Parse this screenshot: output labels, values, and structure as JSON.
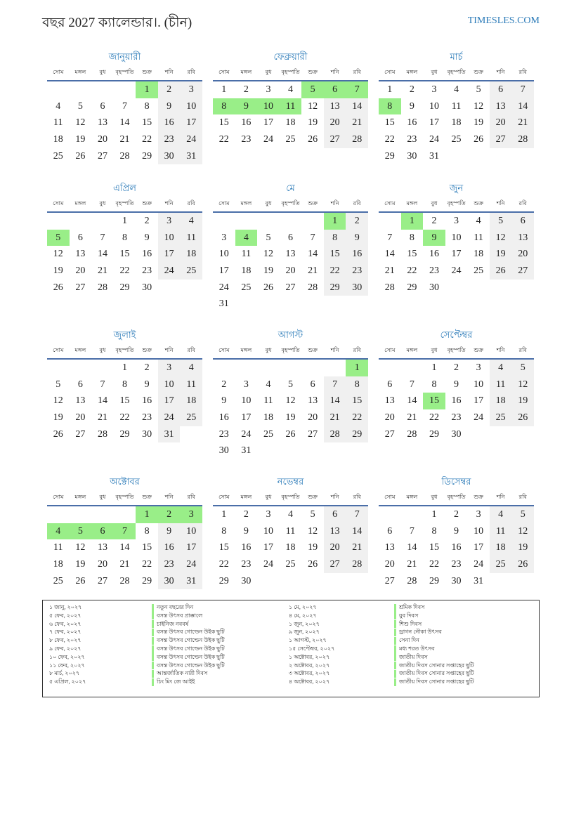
{
  "header": {
    "title": "বছর 2027 ক্যালেন্ডার।. (চীন)",
    "site": "TIMESLES.COM"
  },
  "colors": {
    "accent": "#2a7ab8",
    "holiday": "#99ee88",
    "weekend": "#f0f0f0",
    "rule": "#4a6ea8"
  },
  "weekdays": [
    "সোম",
    "মঙ্গল",
    "বুধ",
    "বৃহস্পতি",
    "শুক্র",
    "শনি",
    "রবি"
  ],
  "months": [
    {
      "name": "জানুয়ারী",
      "start_weekday": 4,
      "days": 31,
      "holidays": [
        1
      ]
    },
    {
      "name": "ফেব্রুয়ারী",
      "start_weekday": 0,
      "days": 28,
      "holidays": [
        5,
        6,
        7,
        8,
        9,
        10,
        11
      ]
    },
    {
      "name": "মার্চ",
      "start_weekday": 0,
      "days": 31,
      "holidays": [
        8
      ]
    },
    {
      "name": "এপ্রিল",
      "start_weekday": 3,
      "days": 30,
      "holidays": [
        5
      ]
    },
    {
      "name": "মে",
      "start_weekday": 5,
      "days": 31,
      "holidays": [
        1,
        4
      ]
    },
    {
      "name": "জুন",
      "start_weekday": 1,
      "days": 30,
      "holidays": [
        1,
        9
      ]
    },
    {
      "name": "জুলাই",
      "start_weekday": 3,
      "days": 31,
      "holidays": []
    },
    {
      "name": "আগস্ট",
      "start_weekday": 6,
      "days": 31,
      "holidays": [
        1
      ]
    },
    {
      "name": "সেপ্টেম্বর",
      "start_weekday": 2,
      "days": 30,
      "holidays": [
        15
      ]
    },
    {
      "name": "অক্টোবর",
      "start_weekday": 4,
      "days": 31,
      "holidays": [
        1,
        2,
        3,
        4,
        5,
        6,
        7
      ]
    },
    {
      "name": "নভেম্বর",
      "start_weekday": 0,
      "days": 30,
      "holidays": []
    },
    {
      "name": "ডিসেম্বর",
      "start_weekday": 2,
      "days": 31,
      "holidays": []
    }
  ],
  "holiday_list": [
    {
      "date": "১ জানু, ২০২৭",
      "name": "নতুন বছরের দিন"
    },
    {
      "date": "৫ ফেব, ২০২৭",
      "name": "বসন্ত উৎসব প্রাক্কালে"
    },
    {
      "date": "৬ ফেব, ২০২৭",
      "name": "চাইনিজ নববর্ষ"
    },
    {
      "date": "৭ ফেব, ২০২৭",
      "name": "বসন্ত উৎসব গোল্ডেন উইক ছুটি"
    },
    {
      "date": "৮ ফেব, ২০২৭",
      "name": "বসন্ত উৎসব গোল্ডেন উইক ছুটি"
    },
    {
      "date": "৯ ফেব, ২০২৭",
      "name": "বসন্ত উৎসব গোল্ডেন উইক ছুটি"
    },
    {
      "date": "১০ ফেব, ২০২৭",
      "name": "বসন্ত উৎসব গোল্ডেন উইক ছুটি"
    },
    {
      "date": "১১ ফেব, ২০২৭",
      "name": "বসন্ত উৎসব গোল্ডেন উইক ছুটি"
    },
    {
      "date": "৮ মার্চ, ২০২৭",
      "name": "আন্তর্জাতিক নারী দিবস"
    },
    {
      "date": "৫ এপ্রিল, ২০২৭",
      "name": "চিং মিং জে আইই"
    },
    {
      "date": "১ মে, ২০২৭",
      "name": "শ্রমিক দিবস"
    },
    {
      "date": "৪ মে, ২০২৭",
      "name": "যুব দিবস"
    },
    {
      "date": "১ জুন, ২০২৭",
      "name": "শিশু দিবস"
    },
    {
      "date": "৯ জুন, ২০২৭",
      "name": "ড্রাগন নৌকা উৎসব"
    },
    {
      "date": "১ আগস্ট, ২০২৭",
      "name": "সেনা দিন"
    },
    {
      "date": "১৫ সেপ্টেম্বর, ২০২৭",
      "name": "মধ্য শরত উৎসব"
    },
    {
      "date": "১ অক্টোবর, ২০২৭",
      "name": "জাতীয় দিবস"
    },
    {
      "date": "২ অক্টোবর, ২০২৭",
      "name": "জাতীয় দিবস সোনার সপ্তাহের ছুটি"
    },
    {
      "date": "৩ অক্টোবর, ২০২৭",
      "name": "জাতীয় দিবস সোনার সপ্তাহের ছুটি"
    },
    {
      "date": "৪ অক্টোবর, ২০২৭",
      "name": "জাতীয় দিবস সোনার সপ্তাহের ছুটি"
    }
  ]
}
